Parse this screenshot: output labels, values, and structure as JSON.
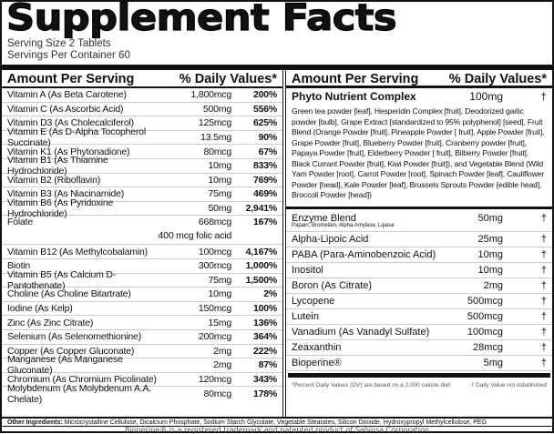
{
  "title": "Supplement Facts",
  "serving_size": "Serving Size 2 Tablets",
  "servings_per_container": "Servings Per Container 60",
  "header": {
    "amount": "Amount Per Serving",
    "dv": "% Daily Values*"
  },
  "left_rows": [
    {
      "name": "Vitamin A (As Beta Carotene)",
      "amount": "1,800mcg",
      "dv": "200%"
    },
    {
      "name": "Vitamin C (As Ascorbic Acid)",
      "amount": "500mg",
      "dv": "556%"
    },
    {
      "name": "Vitamin D3 (As Cholecalciferol)",
      "amount": "125mcg",
      "dv": "625%"
    },
    {
      "name": "Vitamin E (As D-Alpha Tocopherol Succinate)",
      "amount": "13.5mg",
      "dv": "90%"
    },
    {
      "name": "Vitamin K1 (As Phytonadione)",
      "amount": "80mcg",
      "dv": "67%"
    },
    {
      "name": "Vitamin B1 (As Thiamine Hydrochloride)",
      "amount": "10mg",
      "dv": "833%"
    },
    {
      "name": "Vitamin B2 (Riboflavin)",
      "amount": "10mg",
      "dv": "769%"
    },
    {
      "name": "Vitamin B3 (As Niacinamide)",
      "amount": "75mg",
      "dv": "469%"
    },
    {
      "name": "Vitamin B6 (As Pyridoxine Hydrochloride)",
      "amount": "50mg",
      "dv": "2,941%"
    },
    {
      "name": "Folate",
      "amount": "668mcg",
      "dv": "167%",
      "note": "400 mcg folic acid"
    },
    {
      "name": "Vitamin B12 (As Methylcobalamin)",
      "amount": "100mcg",
      "dv": "4,167%"
    },
    {
      "name": "Biotin",
      "amount": "300mcg",
      "dv": "1,000%"
    },
    {
      "name": "Vitamin B5 (As Calcium D-Pantothenate)",
      "amount": "75mg",
      "dv": "1,500%"
    },
    {
      "name": "Choline (As Choline Bitartrate)",
      "amount": "10mg",
      "dv": "2%"
    },
    {
      "name": "Iodine (As Kelp)",
      "amount": "150mcg",
      "dv": "100%"
    },
    {
      "name": "Zinc (As Zinc Citrate)",
      "amount": "15mg",
      "dv": "136%"
    },
    {
      "name": "Selenium (As Selenomethionine)",
      "amount": "200mcg",
      "dv": "364%"
    },
    {
      "name": "Copper (As Copper Gluconate)",
      "amount": "2mg",
      "dv": "222%"
    },
    {
      "name": "Manganese (As Manganese Gluconate)",
      "amount": "2mg",
      "dv": "87%"
    },
    {
      "name": "Chromium (As Chromium Picolinate)",
      "amount": "120mcg",
      "dv": "343%"
    },
    {
      "name": "Molybdenum (As Molybdenum A.A. Chelate)",
      "amount": "80mcg",
      "dv": "178%"
    }
  ],
  "phyto": {
    "name": "Phyto Nutrient Complex",
    "amount": "100mg",
    "dv": "†",
    "description": "Green tea powder [leaf], Hesperidin Complex [fruit], Deodorized garlic powder [bulb], Grape Extract [standardized to 95% polyphenol] [seed], Fruit Blend (Orange Powder [fruit], Pineapple Powder [ fruit], Apple Powder [fruit], Grape Powder [fruit], Blueberry Powder [fruit], Cranberry powder [fruit], Papaya Powder [fruit], Elderberry Powder [ fruit], Bilberry Powder [fruit], Black Currant Powder [fruit], Kiwi Powder [fruit]), and Vegetable Blend (Wild Yam Powder [root], Carrot Powder [root], Spinach Powder [leaf], Cauliflower Powder [head], Kale Powder [leaf], Brussels Sprouts Powder [edible head], Broccoli Powder [head])"
  },
  "enzyme": {
    "name": "Enzyme Blend",
    "amount": "50mg",
    "dv": "†",
    "sub": "Papain, Bromelain, Alpha Amylase, Lipase"
  },
  "right_rows": [
    {
      "name": "Alpha-Lipoic Acid",
      "amount": "25mg",
      "dv": "†"
    },
    {
      "name": "PABA (Para-Aminobenzoic Acid)",
      "amount": "10mg",
      "dv": "†"
    },
    {
      "name": "Inositol",
      "amount": "10mg",
      "dv": "†"
    },
    {
      "name": "Boron (As Citrate)",
      "amount": "2mg",
      "dv": "†"
    },
    {
      "name": "Lycopene",
      "amount": "500mcg",
      "dv": "†"
    },
    {
      "name": "Lutein",
      "amount": "500mcg",
      "dv": "†"
    },
    {
      "name": "Vanadium (As Vanadyl Sulfate)",
      "amount": "100mcg",
      "dv": "†"
    },
    {
      "name": "Zeaxanthin",
      "amount": "28mcg",
      "dv": "†"
    },
    {
      "name": "Bioperine®",
      "amount": "5mg",
      "dv": "†"
    }
  ],
  "footnote_dv": "*Percent Daily Values (DV) are based on a 2,000 calorie diet",
  "footnote_dagger": "† Daily Value not established",
  "other_label": "Other Ingredients:",
  "other_text": " Microcrystalline Cellulose, Dicalcium Phosphate, Sodium Starch Glycolate, Vegetable Stearates, Silicon Dioxide, Hydroxypropyl Methylcellulose, PEG",
  "trademark": "Bioperine® is a registered trademark and patented product of Sabinsa Corporation"
}
